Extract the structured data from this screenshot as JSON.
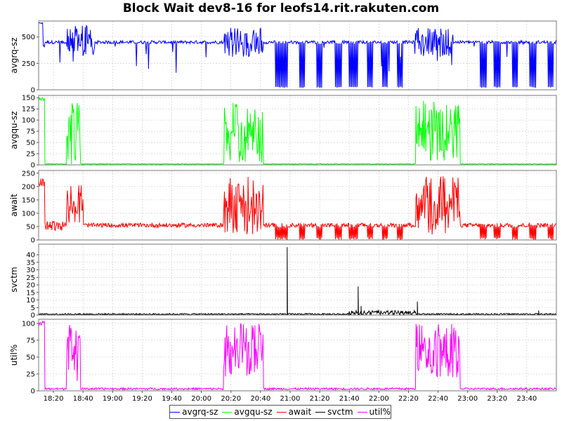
{
  "chart_data": {
    "type": "line",
    "title": "Block Wait dev8-16 for leofs14.rit.rakuten.com",
    "x_range": [
      "18:10",
      "24:00"
    ],
    "x_ticks": [
      "18:20",
      "18:40",
      "19:00",
      "19:20",
      "19:40",
      "20:00",
      "20:20",
      "20:40",
      "21:00",
      "21:20",
      "21:40",
      "22:00",
      "22:20",
      "22:40",
      "23:00",
      "23:20",
      "23:40"
    ],
    "grid": true,
    "legend_position": "bottom",
    "panels": [
      {
        "ylabel": "avgrq-sz",
        "ylim": [
          0,
          650
        ],
        "yticks": [
          0,
          250,
          500
        ],
        "series": {
          "name": "avgrq-sz",
          "color": "#0000ff",
          "baseline": 450,
          "noise": 15,
          "segments": [
            {
              "from": "18:10",
              "to": "18:13",
              "y": 630,
              "noise": 5
            },
            {
              "from": "18:13",
              "to": "18:14",
              "y": 420,
              "noise": 20
            },
            {
              "from": "18:29",
              "to": "18:48",
              "y": 470,
              "noise": 150,
              "dips": true
            },
            {
              "from": "20:15",
              "to": "20:42",
              "y": 450,
              "noise": 140,
              "dips": true
            },
            {
              "from": "22:24",
              "to": "22:50",
              "y": 450,
              "noise": 140,
              "dips": true
            }
          ],
          "drops": [
            [
              "20:50",
              "20:58"
            ],
            [
              "21:06",
              "21:10"
            ],
            [
              "21:18",
              "21:22"
            ],
            [
              "21:30",
              "21:35"
            ],
            [
              "21:40",
              "21:46"
            ],
            [
              "21:52",
              "21:56"
            ],
            [
              "22:02",
              "22:06"
            ],
            [
              "22:12",
              "22:16"
            ],
            [
              "23:08",
              "23:13"
            ],
            [
              "23:18",
              "23:22"
            ],
            [
              "23:30",
              "23:34"
            ],
            [
              "23:42",
              "23:46"
            ],
            [
              "23:54",
              "23:58"
            ]
          ],
          "drop_to": 20
        }
      },
      {
        "ylabel": "avgqu-sz",
        "ylim": [
          0,
          155
        ],
        "yticks": [
          0,
          25,
          50,
          75,
          100,
          125,
          150
        ],
        "series": {
          "name": "avgqu-sz",
          "color": "#00ff00",
          "baseline": 2,
          "noise": 1,
          "segments": [
            {
              "from": "18:10",
              "to": "18:14",
              "y": 145,
              "noise": 5
            },
            {
              "from": "18:29",
              "to": "18:38",
              "y": 70,
              "noise": 70,
              "dips": true
            },
            {
              "from": "20:15",
              "to": "20:42",
              "y": 75,
              "noise": 70,
              "dips": true
            },
            {
              "from": "22:25",
              "to": "22:55",
              "y": 75,
              "noise": 70,
              "dips": true
            }
          ],
          "drops": [],
          "drop_to": 0
        }
      },
      {
        "ylabel": "await",
        "ylim": [
          0,
          260
        ],
        "yticks": [
          0,
          50,
          100,
          150,
          200,
          250
        ],
        "series": {
          "name": "await",
          "color": "#ff0000",
          "baseline": 55,
          "noise": 8,
          "segments": [
            {
              "from": "18:10",
              "to": "18:14",
              "y": 215,
              "noise": 15
            },
            {
              "from": "18:14",
              "to": "18:29",
              "y": 55,
              "noise": 20
            },
            {
              "from": "18:29",
              "to": "18:40",
              "y": 140,
              "noise": 80,
              "dips": true
            },
            {
              "from": "20:15",
              "to": "20:42",
              "y": 130,
              "noise": 110,
              "dips": true
            },
            {
              "from": "22:25",
              "to": "22:55",
              "y": 130,
              "noise": 110,
              "dips": true
            }
          ],
          "drops": [
            [
              "20:50",
              "20:58"
            ],
            [
              "21:06",
              "21:10"
            ],
            [
              "21:18",
              "21:22"
            ],
            [
              "21:30",
              "21:35"
            ],
            [
              "21:40",
              "21:46"
            ],
            [
              "21:52",
              "21:56"
            ],
            [
              "22:02",
              "22:06"
            ],
            [
              "22:12",
              "22:16"
            ],
            [
              "23:08",
              "23:13"
            ],
            [
              "23:18",
              "23:22"
            ],
            [
              "23:30",
              "23:34"
            ],
            [
              "23:42",
              "23:46"
            ],
            [
              "23:54",
              "23:58"
            ]
          ],
          "drop_to": 0
        }
      },
      {
        "ylabel": "svctm",
        "ylim": [
          0,
          47
        ],
        "yticks": [
          0,
          5,
          10,
          15,
          20,
          25,
          30,
          35,
          40
        ],
        "series": {
          "name": "svctm",
          "color": "#000000",
          "baseline": 0.6,
          "noise": 0.5,
          "segments": [
            {
              "from": "21:40",
              "to": "22:25",
              "y": 1.5,
              "noise": 1.5
            }
          ],
          "spikes": [
            [
              "20:58",
              45
            ],
            [
              "21:46",
              19
            ],
            [
              "21:48",
              6
            ],
            [
              "22:26",
              9
            ],
            [
              "23:48",
              3
            ]
          ],
          "drops": [],
          "drop_to": 0
        }
      },
      {
        "ylabel": "util%",
        "ylim": [
          0,
          106
        ],
        "yticks": [
          0,
          25,
          50,
          75,
          100
        ],
        "series": {
          "name": "util%",
          "color": "#ff00ff",
          "baseline": 3,
          "noise": 1.5,
          "segments": [
            {
              "from": "18:10",
              "to": "18:14",
              "y": 100,
              "noise": 4
            },
            {
              "from": "18:29",
              "to": "18:38",
              "y": 55,
              "noise": 45,
              "dips": true
            },
            {
              "from": "20:15",
              "to": "20:42",
              "y": 60,
              "noise": 40,
              "dips": true
            },
            {
              "from": "22:25",
              "to": "22:55",
              "y": 60,
              "noise": 40,
              "dips": true
            }
          ],
          "drops": [],
          "drop_to": 0
        }
      }
    ]
  },
  "legend": {
    "items": [
      {
        "label": "avgrq-sz",
        "color": "#0000ff"
      },
      {
        "label": "avgqu-sz",
        "color": "#00ff00"
      },
      {
        "label": "await",
        "color": "#ff0000"
      },
      {
        "label": "svctm",
        "color": "#000000"
      },
      {
        "label": "util%",
        "color": "#ff00ff"
      }
    ]
  }
}
